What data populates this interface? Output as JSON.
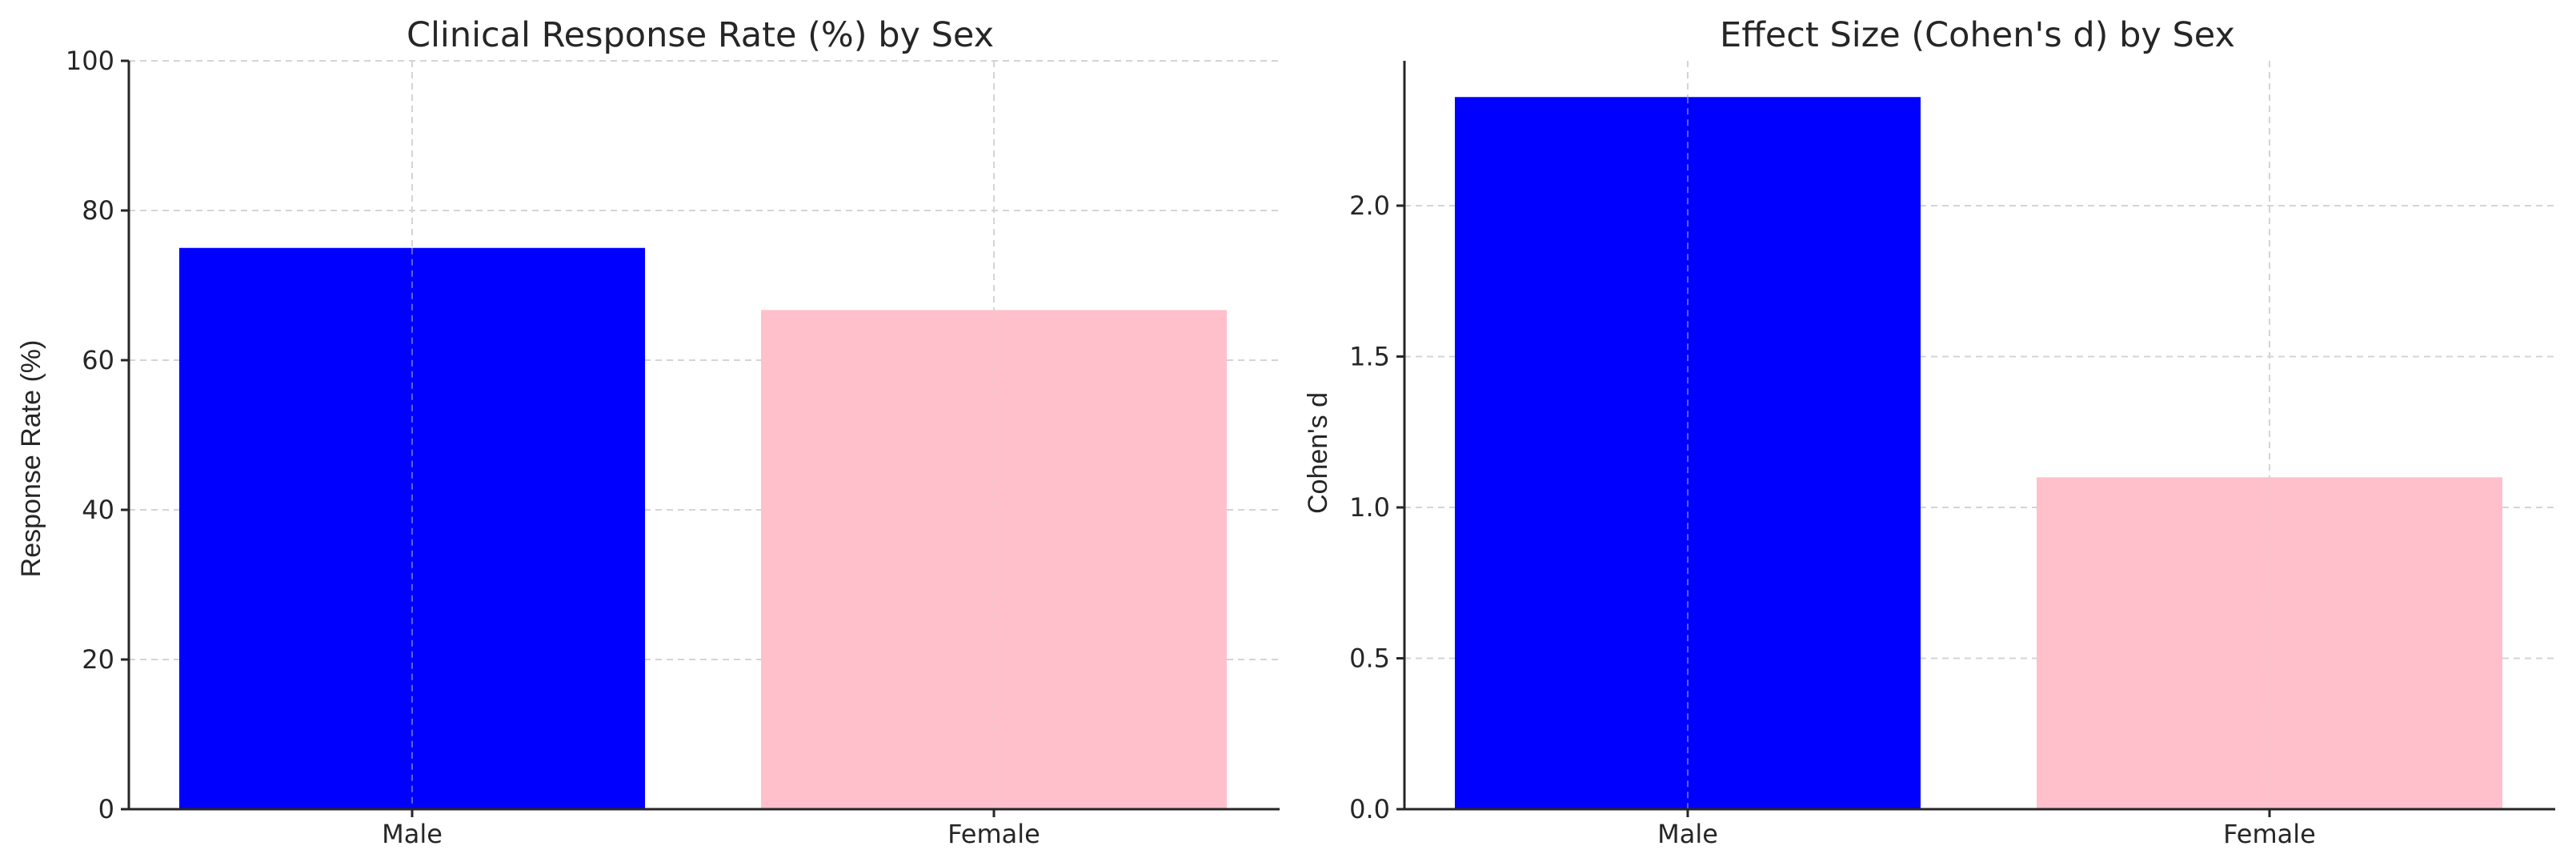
{
  "chart_data": [
    {
      "type": "bar",
      "title": "Clinical Response Rate (%) by Sex",
      "xlabel": "",
      "ylabel": "Response Rate (%)",
      "categories": [
        "Male",
        "Female"
      ],
      "values": [
        75.0,
        66.7
      ],
      "colors": [
        "#0000ff",
        "#ffc0cb"
      ],
      "ylim": [
        0,
        100
      ],
      "yticks": [
        "0",
        "20",
        "40",
        "60",
        "80",
        "100"
      ],
      "ytick_values": [
        0,
        20,
        40,
        60,
        80,
        100
      ],
      "grid": true,
      "legend": false
    },
    {
      "type": "bar",
      "title": "Effect Size (Cohen's d) by Sex",
      "xlabel": "",
      "ylabel": "Cohen's d",
      "categories": [
        "Male",
        "Female"
      ],
      "values": [
        2.36,
        1.1
      ],
      "colors": [
        "#0000ff",
        "#ffc0cb"
      ],
      "ylim": [
        0,
        2.48
      ],
      "yticks": [
        "0.0",
        "0.5",
        "1.0",
        "1.5",
        "2.0"
      ],
      "ytick_values": [
        0,
        0.5,
        1.0,
        1.5,
        2.0
      ],
      "grid": true,
      "legend": false
    }
  ]
}
